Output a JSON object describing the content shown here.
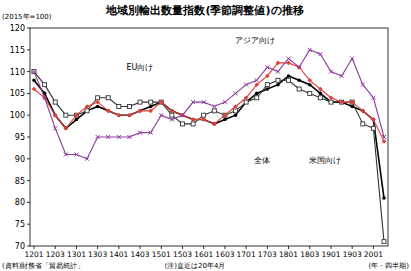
{
  "chart_data": {
    "type": "line",
    "title": "地域別輸出数量指数(季節調整値)の推移",
    "y_label": "(2015年=100)",
    "x_label": "(年・四半期)",
    "source": "(資料)財務省「貿易統計」",
    "note": "(注)直近は20年4月",
    "categories": [
      "1201",
      null,
      "1203",
      null,
      "1301",
      null,
      "1303",
      null,
      "1401",
      null,
      "1403",
      null,
      "1501",
      null,
      "1503",
      null,
      "1601",
      null,
      "1603",
      null,
      "1701",
      null,
      "1703",
      null,
      "1801",
      null,
      "1803",
      null,
      "1901",
      null,
      "1903",
      null,
      "2001",
      null
    ],
    "series": [
      {
        "name": "全体",
        "color": "#000000",
        "marker": "circle",
        "values": [
          108,
          105,
          100,
          97,
          99,
          101,
          102,
          101,
          100,
          100,
          101,
          102,
          103,
          101,
          100,
          99,
          99,
          98,
          99,
          100,
          103,
          105,
          106,
          107,
          109,
          108,
          107,
          105,
          103,
          103,
          102,
          101,
          99,
          81
        ]
      },
      {
        "name": "米国向け",
        "color": "#333333",
        "marker": "square",
        "values": [
          110,
          107,
          103,
          100,
          100,
          101,
          104,
          104,
          102,
          102,
          103,
          103,
          103,
          100,
          98,
          98,
          100,
          101,
          100,
          101,
          103,
          104,
          107,
          108,
          108,
          106,
          105,
          104,
          103,
          103,
          103,
          98,
          97,
          71
        ]
      },
      {
        "name": "アジア向け",
        "color": "#e0403a",
        "marker": "diamond",
        "values": [
          106,
          104,
          100,
          97,
          100,
          102,
          103,
          101,
          100,
          100,
          101,
          101,
          103,
          101,
          100,
          99,
          99,
          98,
          100,
          102,
          104,
          107,
          109,
          112,
          112,
          111,
          108,
          106,
          104,
          103,
          103,
          101,
          99,
          94
        ]
      },
      {
        "name": "EU向け",
        "color": "#8e3a9e",
        "marker": "x",
        "values": [
          110,
          104,
          97,
          91,
          91,
          90,
          95,
          95,
          95,
          95,
          96,
          96,
          100,
          99,
          100,
          103,
          103,
          102,
          103,
          105,
          107,
          108,
          111,
          110,
          113,
          111,
          115,
          114,
          110,
          109,
          113,
          107,
          104,
          95
        ]
      }
    ],
    "ylim": [
      70,
      120
    ],
    "yticks": [
      70,
      75,
      80,
      85,
      90,
      95,
      100,
      105,
      110,
      115,
      120
    ],
    "grid": false
  }
}
